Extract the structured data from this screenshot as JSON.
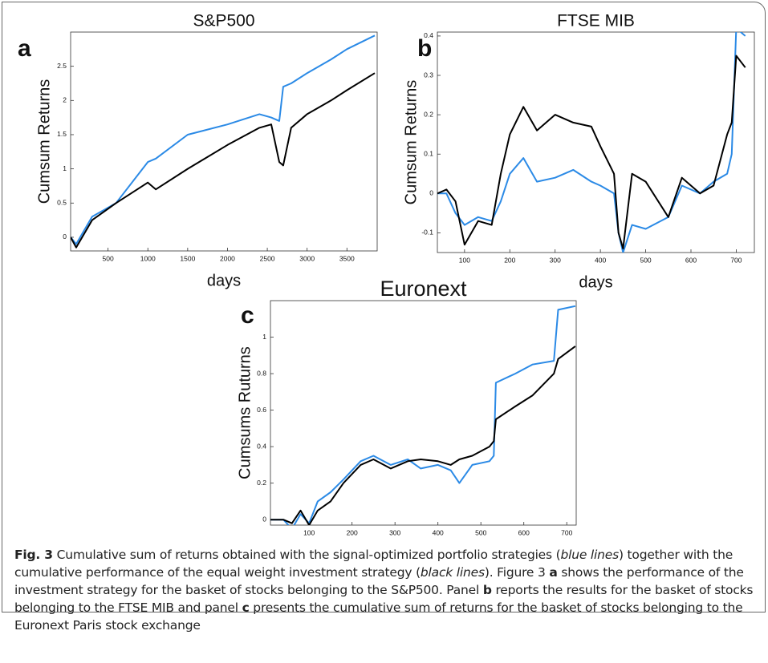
{
  "chart_data": [
    {
      "type": "line",
      "panel_label": "a",
      "title": "S&P500",
      "xlabel": "days",
      "ylabel": "Cumsum Returns",
      "x": [
        30,
        100,
        300,
        600,
        1000,
        1100,
        1500,
        2000,
        2400,
        2550,
        2650,
        2700,
        2800,
        3000,
        3300,
        3500,
        3850
      ],
      "xlim": [
        30,
        3880
      ],
      "xticks": [
        500,
        1000,
        1500,
        2000,
        2500,
        3000,
        3500
      ],
      "ylim": [
        -0.2,
        3.0
      ],
      "yticks": [
        0,
        0.5,
        1,
        1.5,
        2,
        2.5
      ],
      "series": [
        {
          "color": "#2b8ae6",
          "values": [
            0,
            -0.1,
            0.3,
            0.5,
            1.1,
            1.15,
            1.5,
            1.65,
            1.8,
            1.75,
            1.7,
            2.2,
            2.25,
            2.4,
            2.6,
            2.75,
            2.95
          ]
        },
        {
          "color": "#000000",
          "values": [
            0,
            -0.15,
            0.25,
            0.5,
            0.8,
            0.7,
            1.0,
            1.35,
            1.6,
            1.65,
            1.1,
            1.05,
            1.6,
            1.8,
            2.0,
            2.15,
            2.4
          ]
        }
      ]
    },
    {
      "type": "line",
      "panel_label": "b",
      "title": "FTSE MIB",
      "xlabel": "days",
      "ylabel": "Cumsum Returns",
      "x": [
        40,
        60,
        80,
        100,
        130,
        160,
        180,
        200,
        230,
        260,
        300,
        340,
        380,
        400,
        430,
        440,
        450,
        470,
        500,
        550,
        580,
        620,
        650,
        680,
        690,
        700,
        720
      ],
      "xlim": [
        40,
        740
      ],
      "xticks": [
        100,
        200,
        300,
        400,
        500,
        600,
        700
      ],
      "ylim": [
        -0.15,
        0.41
      ],
      "yticks": [
        -0.1,
        0,
        0.1,
        0.2,
        0.3,
        0.4
      ],
      "series": [
        {
          "color": "#2b8ae6",
          "values": [
            0,
            0,
            -0.05,
            -0.08,
            -0.06,
            -0.07,
            -0.02,
            0.05,
            0.09,
            0.03,
            0.04,
            0.06,
            0.03,
            0.02,
            0.0,
            -0.1,
            -0.15,
            -0.08,
            -0.09,
            -0.06,
            0.02,
            0.0,
            0.03,
            0.05,
            0.1,
            0.42,
            0.4
          ]
        },
        {
          "color": "#000000",
          "values": [
            0,
            0.01,
            -0.02,
            -0.13,
            -0.07,
            -0.08,
            0.05,
            0.15,
            0.22,
            0.16,
            0.2,
            0.18,
            0.17,
            0.12,
            0.05,
            -0.1,
            -0.14,
            0.05,
            0.03,
            -0.06,
            0.04,
            0.0,
            0.02,
            0.15,
            0.18,
            0.35,
            0.32
          ]
        }
      ]
    },
    {
      "type": "line",
      "panel_label": "c",
      "title": "Euronext",
      "xlabel": "days",
      "ylabel": "Cumsums Ruturns",
      "x": [
        10,
        40,
        60,
        80,
        100,
        120,
        150,
        180,
        220,
        250,
        290,
        330,
        360,
        400,
        430,
        450,
        480,
        520,
        530,
        535,
        580,
        620,
        670,
        680,
        720
      ],
      "xlim": [
        10,
        722
      ],
      "xticks": [
        100,
        200,
        300,
        400,
        500,
        600,
        700
      ],
      "ylim": [
        -0.03,
        1.2
      ],
      "yticks": [
        0,
        0.2,
        0.4,
        0.6,
        0.8,
        1
      ],
      "series": [
        {
          "color": "#2b8ae6",
          "values": [
            0,
            0,
            -0.05,
            0.03,
            -0.02,
            0.1,
            0.15,
            0.22,
            0.32,
            0.35,
            0.3,
            0.33,
            0.28,
            0.3,
            0.27,
            0.2,
            0.3,
            0.32,
            0.35,
            0.75,
            0.8,
            0.85,
            0.87,
            1.15,
            1.17
          ]
        },
        {
          "color": "#000000",
          "values": [
            0,
            0,
            -0.02,
            0.05,
            -0.03,
            0.05,
            0.1,
            0.2,
            0.3,
            0.33,
            0.28,
            0.32,
            0.33,
            0.32,
            0.3,
            0.33,
            0.35,
            0.4,
            0.43,
            0.55,
            0.62,
            0.68,
            0.8,
            0.88,
            0.95
          ]
        }
      ]
    }
  ],
  "caption": {
    "parts": [
      "Fig. 3",
      " Cumulative sum of returns obtained with the signal-optimized portfolio strategies (",
      "blue lines",
      ") together with the cumulative performance of the equal weight investment strategy (",
      "black lines",
      "). Figure 3 ",
      "a",
      " shows the performance of the investment strategy for the basket of stocks belonging to the S&P500. Panel ",
      "b",
      " reports the results for the basket of stocks belonging to the FTSE MIB and panel ",
      "c",
      " presents the cumulative sum of returns for the basket of stocks belonging to the Euronext Paris stock exchange"
    ]
  }
}
